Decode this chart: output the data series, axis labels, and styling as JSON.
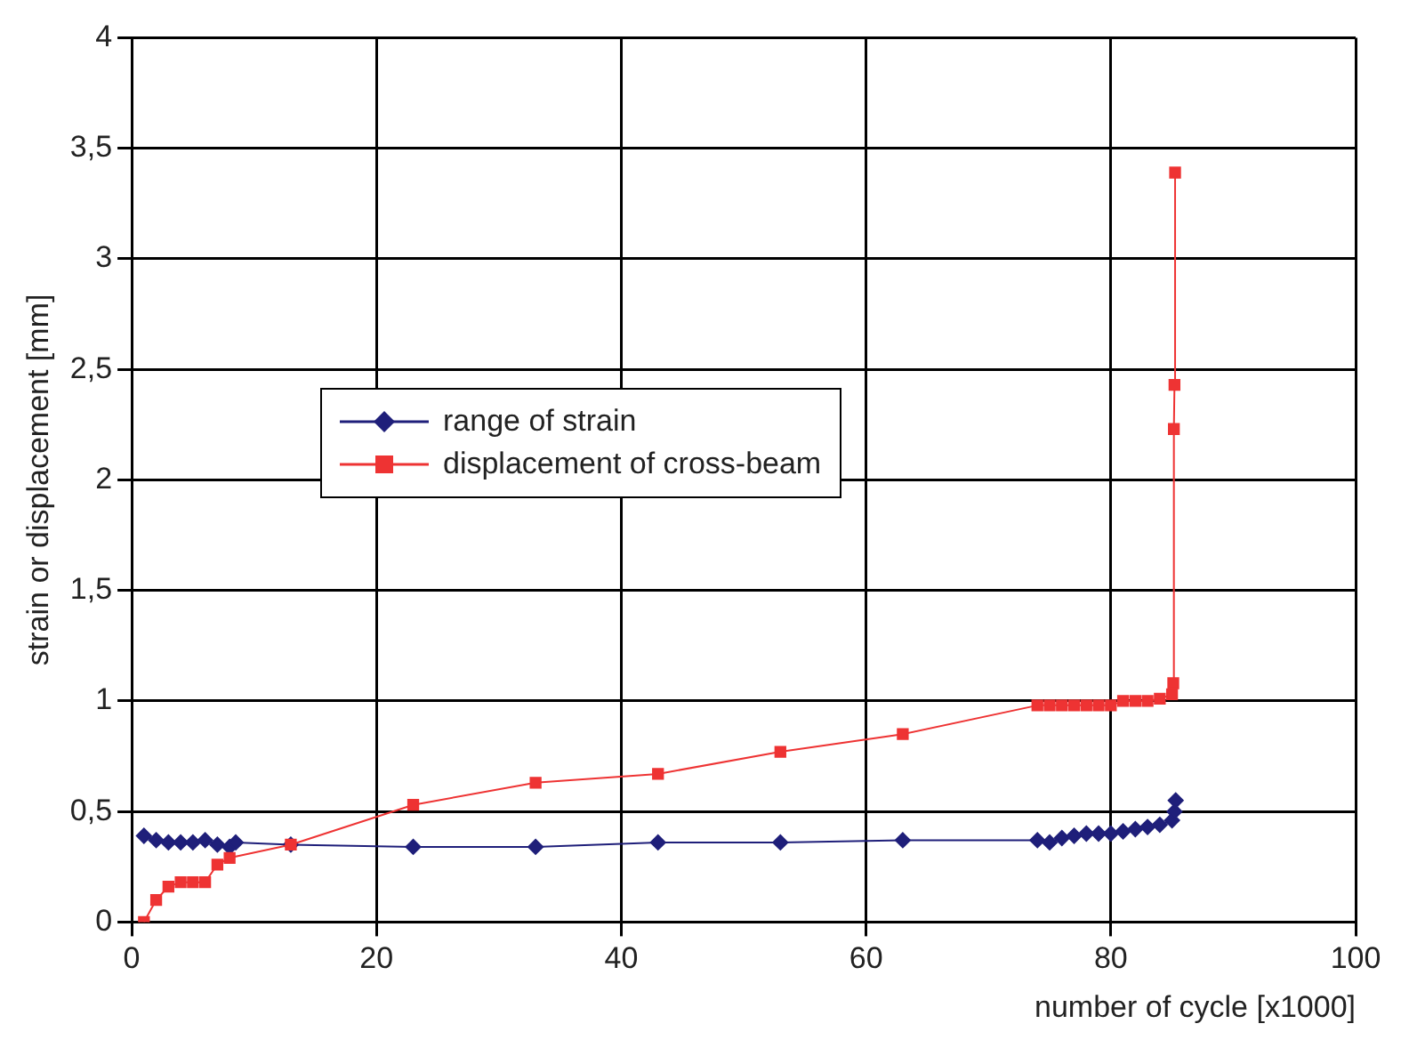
{
  "chart_data": {
    "type": "line",
    "xlabel": "number of cycle [x1000]",
    "ylabel": "strain or displacement [mm]",
    "xlim": [
      0,
      100
    ],
    "xticks": [
      0,
      20,
      40,
      60,
      80,
      100
    ],
    "ylim": [
      0,
      4
    ],
    "yticks": [
      0,
      {
        "value": 0.5,
        "label": "0,5"
      },
      1,
      {
        "value": 1.5,
        "label": "1,5"
      },
      2,
      {
        "value": 2.5,
        "label": "2,5"
      },
      3,
      {
        "value": 3.5,
        "label": "3,5"
      },
      4
    ],
    "grid": true,
    "legend": "top left",
    "series": [
      {
        "name": "range of strain",
        "color": "#1f1f7a",
        "marker": "diamond",
        "x": [
          1,
          2,
          3,
          4,
          5,
          6,
          7,
          8,
          8.5,
          13,
          23,
          33,
          43,
          53,
          63,
          74,
          75,
          76,
          77,
          78,
          79,
          80,
          81,
          82,
          83,
          84,
          85,
          85.2,
          85.3
        ],
        "values": [
          0.39,
          0.37,
          0.36,
          0.36,
          0.36,
          0.37,
          0.35,
          0.34,
          0.36,
          0.35,
          0.34,
          0.34,
          0.36,
          0.36,
          0.37,
          0.37,
          0.36,
          0.38,
          0.39,
          0.4,
          0.4,
          0.4,
          0.41,
          0.42,
          0.43,
          0.44,
          0.46,
          0.5,
          0.55
        ]
      },
      {
        "name": "displacement of cross-beam",
        "color": "#ee3333",
        "marker": "square",
        "x": [
          1,
          2,
          3,
          4,
          5,
          6,
          7,
          8,
          13,
          23,
          33,
          43,
          53,
          63,
          74,
          75,
          76,
          77,
          78,
          79,
          80,
          81,
          82,
          83,
          84,
          85,
          85.1,
          85.15,
          85.2,
          85.25
        ],
        "values": [
          0,
          0.1,
          0.16,
          0.18,
          0.18,
          0.18,
          0.26,
          0.29,
          0.35,
          0.53,
          0.63,
          0.67,
          0.77,
          0.85,
          0.98,
          0.98,
          0.98,
          0.98,
          0.98,
          0.98,
          0.98,
          1,
          1,
          1,
          1.01,
          1.03,
          1.08,
          2.23,
          2.43,
          3.39
        ]
      }
    ]
  }
}
